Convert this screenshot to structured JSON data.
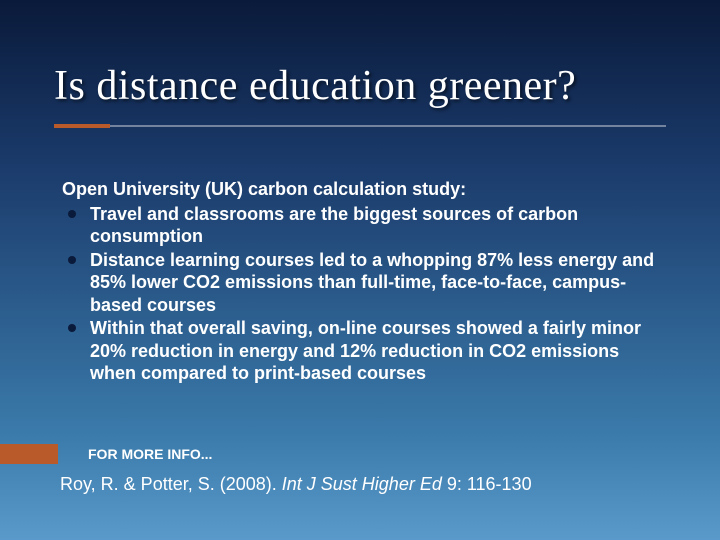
{
  "colors": {
    "bg_gradient_stops": [
      "#0a1a3a",
      "#1a3a6a",
      "#2a5a8a",
      "#3a7aaa",
      "#5a9aca"
    ],
    "accent": "#b85a2a",
    "text": "#ffffff",
    "bullet": "#0a1a3a",
    "rule_line": "rgba(255,255,255,0.4)"
  },
  "typography": {
    "title_font": "Times New Roman",
    "title_size_pt": 32,
    "body_font": "Arial",
    "body_size_pt": 14,
    "body_weight": "bold",
    "citation_size_pt": 14,
    "for_more_size_pt": 11
  },
  "title": "Is distance education greener?",
  "intro": "Open University (UK) carbon calculation study:",
  "bullets": [
    "Travel and classrooms are the biggest sources of carbon consumption",
    "Distance learning courses led to a whopping 87% less energy and 85% lower CO2 emissions than full-time, face-to-face, campus-based courses",
    "Within that overall saving, on-line courses showed a fairly minor 20% reduction in energy and 12% reduction in CO2 emissions when compared to print-based courses"
  ],
  "for_more_label": "FOR MORE INFO...",
  "citation": {
    "authors_year": "Roy, R. & Potter, S. (2008).  ",
    "journal": "Int J Sust Higher Ed",
    "vol_pages": " 9: 116-130"
  }
}
